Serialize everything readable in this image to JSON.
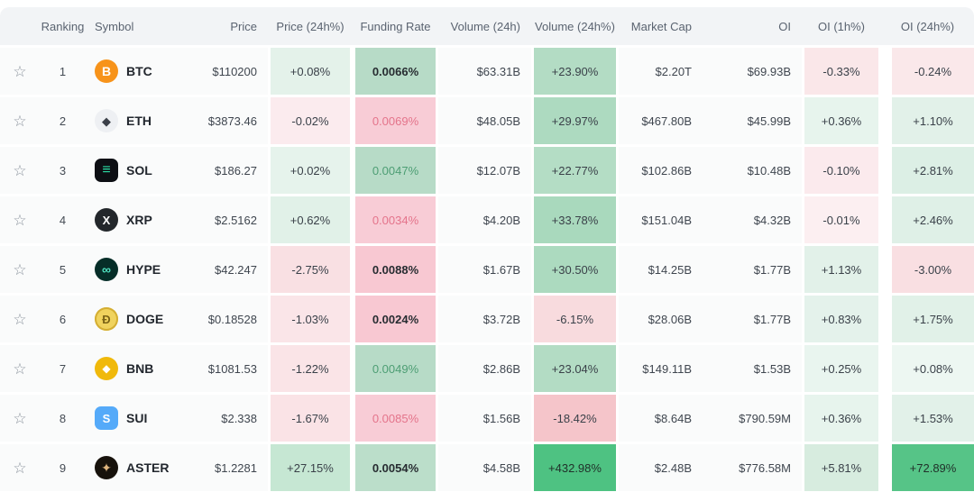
{
  "table": {
    "headers": [
      "",
      "Ranking",
      "Symbol",
      "Price",
      "Price (24h%)",
      "Funding Rate",
      "Volume (24h)",
      "Volume (24h%)",
      "Market Cap",
      "OI",
      "OI (1h%)",
      "OI (24h%)"
    ],
    "favorite_icon": "☆",
    "rows": [
      {
        "rank": "1",
        "symbol": "BTC",
        "icon": {
          "shape": "circle",
          "bg": "#f7931a",
          "fg": "#ffffff",
          "g": "B",
          "fs": 14
        },
        "price": "$110200",
        "vol": "$63.31B",
        "mcap": "$2.20T",
        "oi": "$69.93B",
        "price24": {
          "t": "+0.08%",
          "bg": "#e4f2ea"
        },
        "funding": {
          "t": "0.0066%",
          "bg": "#b7dbc7",
          "fg": "#272c31",
          "bold": true
        },
        "vol24": {
          "t": "+23.90%",
          "bg": "#b3dcc4"
        },
        "oi1h": {
          "t": "-0.33%",
          "bg": "#fae7e9"
        },
        "oi24h": {
          "t": "-0.24%",
          "bg": "#fae8ea"
        }
      },
      {
        "rank": "2",
        "symbol": "ETH",
        "icon": {
          "shape": "circle",
          "bg": "#eef0f3",
          "fg": "#3b4049",
          "g": "◆",
          "fs": 13
        },
        "price": "$3873.46",
        "vol": "$48.05B",
        "mcap": "$467.80B",
        "oi": "$45.99B",
        "price24": {
          "t": "-0.02%",
          "bg": "#fbebee"
        },
        "funding": {
          "t": "0.0069%",
          "bg": "#f8ccd6",
          "fg": "#e4748b"
        },
        "vol24": {
          "t": "+29.97%",
          "bg": "#addac0"
        },
        "oi1h": {
          "t": "+0.36%",
          "bg": "#e7f4ed"
        },
        "oi24h": {
          "t": "+1.10%",
          "bg": "#e2f1e9"
        }
      },
      {
        "rank": "3",
        "symbol": "SOL",
        "icon": {
          "shape": "square",
          "bg": "#0d0f14",
          "fg": "#2ce0a7",
          "g": "≡",
          "fs": 16
        },
        "price": "$186.27",
        "vol": "$12.07B",
        "mcap": "$102.86B",
        "oi": "$10.48B",
        "price24": {
          "t": "+0.02%",
          "bg": "#e6f3ec"
        },
        "funding": {
          "t": "0.0047%",
          "bg": "#b7dbc7",
          "fg": "#4d9e74"
        },
        "vol24": {
          "t": "+22.77%",
          "bg": "#b4ddc5"
        },
        "oi1h": {
          "t": "-0.10%",
          "bg": "#fbeaed"
        },
        "oi24h": {
          "t": "+2.81%",
          "bg": "#dcefe5"
        }
      },
      {
        "rank": "4",
        "symbol": "XRP",
        "icon": {
          "shape": "circle",
          "bg": "#23272b",
          "fg": "#ffffff",
          "g": "X",
          "fs": 13
        },
        "price": "$2.5162",
        "vol": "$4.20B",
        "mcap": "$151.04B",
        "oi": "$4.32B",
        "price24": {
          "t": "+0.62%",
          "bg": "#e1f1e8"
        },
        "funding": {
          "t": "0.0034%",
          "bg": "#f8ccd6",
          "fg": "#e4748b"
        },
        "vol24": {
          "t": "+33.78%",
          "bg": "#a9d9bd"
        },
        "oi1h": {
          "t": "-0.01%",
          "bg": "#fceff1"
        },
        "oi24h": {
          "t": "+2.46%",
          "bg": "#dff0e7"
        }
      },
      {
        "rank": "5",
        "symbol": "HYPE",
        "icon": {
          "shape": "circle",
          "bg": "#062e28",
          "fg": "#4fe2c0",
          "g": "∞",
          "fs": 14
        },
        "price": "$42.247",
        "vol": "$1.67B",
        "mcap": "$14.25B",
        "oi": "$1.77B",
        "price24": {
          "t": "-2.75%",
          "bg": "#f9e0e3"
        },
        "funding": {
          "t": "0.0088%",
          "bg": "#f8c8d2",
          "fg": "#272c31",
          "bold": true
        },
        "vol24": {
          "t": "+30.50%",
          "bg": "#acdabf"
        },
        "oi1h": {
          "t": "+1.13%",
          "bg": "#e2f1e9"
        },
        "oi24h": {
          "t": "-3.00%",
          "bg": "#f9dfe2"
        }
      },
      {
        "rank": "6",
        "symbol": "DOGE",
        "icon": {
          "shape": "circle",
          "bg": "#f0d35e",
          "fg": "#7a6316",
          "g": "Ð",
          "fs": 13,
          "ring": "#d4ae33"
        },
        "price": "$0.18528",
        "vol": "$3.72B",
        "mcap": "$28.06B",
        "oi": "$1.77B",
        "price24": {
          "t": "-1.03%",
          "bg": "#fae5e8"
        },
        "funding": {
          "t": "0.0024%",
          "bg": "#f8c8d2",
          "fg": "#272c31",
          "bold": true
        },
        "vol24": {
          "t": "-6.15%",
          "bg": "#f8dbde"
        },
        "oi1h": {
          "t": "+0.83%",
          "bg": "#e4f2eb"
        },
        "oi24h": {
          "t": "+1.75%",
          "bg": "#e1f1e8"
        }
      },
      {
        "rank": "7",
        "symbol": "BNB",
        "icon": {
          "shape": "circle",
          "bg": "#f0b90b",
          "fg": "#ffffff",
          "g": "◆",
          "fs": 12
        },
        "price": "$1081.53",
        "vol": "$2.86B",
        "mcap": "$149.11B",
        "oi": "$1.53B",
        "price24": {
          "t": "-1.22%",
          "bg": "#fae4e7"
        },
        "funding": {
          "t": "0.0049%",
          "bg": "#b7dbc7",
          "fg": "#4d9e74"
        },
        "vol24": {
          "t": "+23.04%",
          "bg": "#b3dcc4"
        },
        "oi1h": {
          "t": "+0.25%",
          "bg": "#e9f5ef"
        },
        "oi24h": {
          "t": "+0.08%",
          "bg": "#edf7f2"
        }
      },
      {
        "rank": "8",
        "symbol": "SUI",
        "icon": {
          "shape": "square",
          "bg": "#55aaf9",
          "fg": "#ffffff",
          "g": "S",
          "fs": 13
        },
        "price": "$2.338",
        "vol": "$1.56B",
        "mcap": "$8.64B",
        "oi": "$790.59M",
        "price24": {
          "t": "-1.67%",
          "bg": "#fae3e6"
        },
        "funding": {
          "t": "0.0085%",
          "bg": "#f8ccd6",
          "fg": "#e4748b"
        },
        "vol24": {
          "t": "-18.42%",
          "bg": "#f5c5ca"
        },
        "oi1h": {
          "t": "+0.36%",
          "bg": "#e7f4ed"
        },
        "oi24h": {
          "t": "+1.53%",
          "bg": "#e2f1e9"
        }
      },
      {
        "rank": "9",
        "symbol": "ASTER",
        "icon": {
          "shape": "circle",
          "bg": "#17120c",
          "fg": "#dfb57e",
          "g": "✦",
          "fs": 14
        },
        "price": "$1.2281",
        "vol": "$4.58B",
        "mcap": "$2.48B",
        "oi": "$776.58M",
        "price24": {
          "t": "+27.15%",
          "bg": "#c6e7d3"
        },
        "funding": {
          "t": "0.0054%",
          "bg": "#bbdeca",
          "fg": "#272c31",
          "bold": true
        },
        "vol24": {
          "t": "+432.98%",
          "bg": "#4ec282",
          "fg": "#21312a"
        },
        "oi1h": {
          "t": "+5.81%",
          "bg": "#d7ecdf"
        },
        "oi24h": {
          "t": "+72.89%",
          "bg": "#56c487",
          "fg": "#21312a"
        }
      }
    ]
  },
  "palette": {
    "header_bg": "#f2f4f6",
    "row_bg": "#fafbfb",
    "positive_strong": "#4ec282",
    "positive_soft": "#b7dbc7",
    "negative_soft": "#f8ccd6",
    "funding_up_text": "#4d9e74",
    "funding_down_text": "#e4748b"
  }
}
